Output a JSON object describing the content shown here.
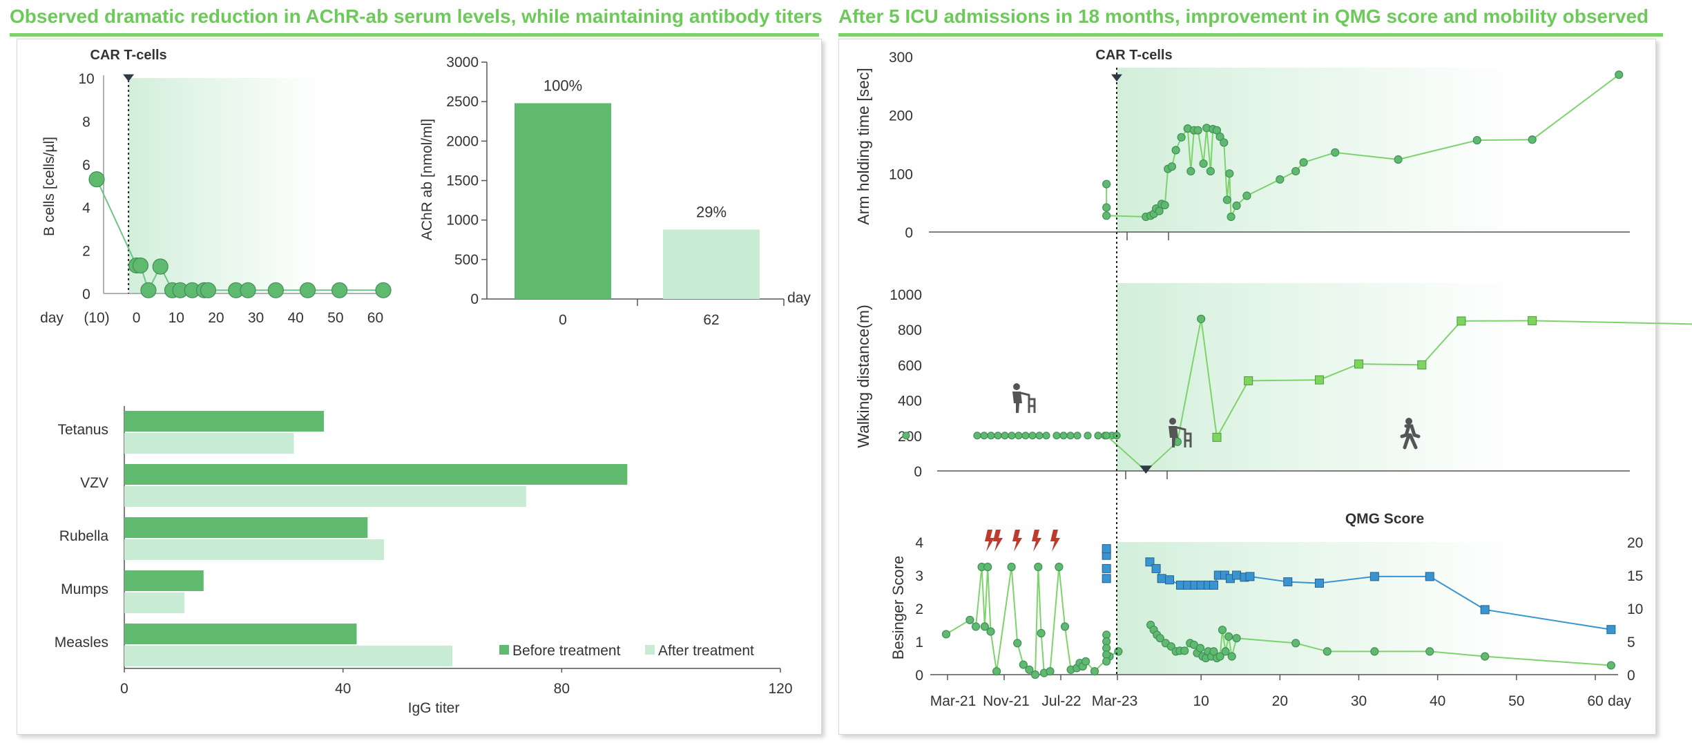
{
  "left_title": "Observed dramatic reduction in AChR-ab serum levels, while maintaining antibody titers",
  "right_title": "After 5 ICU admissions in 18 months, improvement in QMG score and mobility observed",
  "colors": {
    "dark_green": "#5fba70",
    "light_green": "#c8ebd4",
    "line_green": "#7dd36b",
    "blue": "#3a94d0",
    "red": "#c0392b",
    "title_green": "#6cc95a"
  },
  "chart_data": [
    {
      "id": "bcells",
      "type": "line",
      "annotation": "CAR T-cells",
      "ylabel": "B cells [cells/µl]",
      "xlabel": "day",
      "ylim": [
        0,
        10
      ],
      "yticks": [
        "0",
        "2",
        "4",
        "6",
        "8",
        "10"
      ],
      "xtick_labels": [
        "(10)",
        "0",
        "10",
        "20",
        "30",
        "40",
        "50",
        "60"
      ],
      "xtick_values": [
        -10,
        0,
        10,
        20,
        30,
        40,
        50,
        60
      ],
      "xlim": [
        -10,
        62
      ],
      "car_t_day": -2,
      "points": [
        [
          -10,
          5.3
        ],
        [
          0,
          1.3
        ],
        [
          1,
          1.3
        ],
        [
          3,
          0.15
        ],
        [
          6,
          1.25
        ],
        [
          9,
          0.15
        ],
        [
          11,
          0.15
        ],
        [
          14,
          0.15
        ],
        [
          17,
          0.15
        ],
        [
          18,
          0.15
        ],
        [
          25,
          0.15
        ],
        [
          28,
          0.15
        ],
        [
          35,
          0.15
        ],
        [
          43,
          0.15
        ],
        [
          51,
          0.15
        ],
        [
          62,
          0.15
        ]
      ]
    },
    {
      "id": "achr",
      "type": "bar",
      "ylabel": "AChR ab [nmol/ml]",
      "xlabel": "day",
      "ylim": [
        0,
        3000
      ],
      "yticks": [
        "0",
        "500",
        "1000",
        "1500",
        "2000",
        "2500",
        "3000"
      ],
      "categories": [
        "0",
        "62"
      ],
      "values": [
        2480,
        880
      ],
      "labels": [
        "100%",
        "29%"
      ]
    },
    {
      "id": "igg",
      "type": "bar",
      "orientation": "horizontal",
      "xlabel": "IgG titer",
      "xlim": [
        0,
        120
      ],
      "xticks": [
        "0",
        "40",
        "80",
        "120"
      ],
      "categories": [
        "Tetanus",
        "VZV",
        "Rubella",
        "Mumps",
        "Measles"
      ],
      "series": [
        {
          "name": "Before treatment",
          "values": [
            36.5,
            92,
            44.5,
            14.5,
            42.5
          ]
        },
        {
          "name": "After treatment",
          "values": [
            31,
            73.5,
            47.5,
            11,
            60
          ]
        }
      ]
    },
    {
      "id": "arm",
      "type": "line",
      "annotation": "CAR T-cells",
      "ylabel": "Arm holding time [sec]",
      "ylim": [
        0,
        300
      ],
      "yticks": [
        "0",
        "100",
        "200",
        "300"
      ],
      "points": [
        [
          -2,
          82
        ],
        [
          -2,
          42
        ],
        [
          -2,
          28
        ],
        [
          3,
          26
        ],
        [
          3.6,
          28
        ],
        [
          4,
          31
        ],
        [
          4.3,
          40
        ],
        [
          4.7,
          36
        ],
        [
          5,
          48
        ],
        [
          5.4,
          46
        ],
        [
          5.8,
          108
        ],
        [
          6.3,
          112
        ],
        [
          6.8,
          140
        ],
        [
          7.5,
          162
        ],
        [
          8.3,
          177
        ],
        [
          8.7,
          104
        ],
        [
          9.1,
          174
        ],
        [
          9.6,
          174
        ],
        [
          10.3,
          117
        ],
        [
          10.7,
          178
        ],
        [
          11.2,
          104
        ],
        [
          11.5,
          176
        ],
        [
          12,
          174
        ],
        [
          12.4,
          163
        ],
        [
          12.9,
          153
        ],
        [
          13.3,
          55
        ],
        [
          13.6,
          100
        ],
        [
          13.8,
          26
        ],
        [
          14.5,
          45
        ],
        [
          15.8,
          62
        ],
        [
          20,
          90
        ],
        [
          22,
          104
        ],
        [
          23,
          119
        ],
        [
          27,
          136
        ],
        [
          35,
          124
        ],
        [
          45,
          157
        ],
        [
          52,
          158
        ],
        [
          63,
          269
        ]
      ]
    },
    {
      "id": "walk",
      "type": "line",
      "ylabel": "Walking distance(m)",
      "ylim": [
        0,
        1000
      ],
      "yticks": [
        "0",
        "200",
        "400",
        "600",
        "800",
        "1000"
      ],
      "pre_points": [
        200,
        200,
        200,
        200,
        200,
        200,
        200,
        200,
        200,
        200,
        200,
        200,
        200,
        200,
        200,
        200,
        200,
        200,
        200,
        200,
        200
      ],
      "points": [
        [
          -2,
          200
        ],
        [
          3,
          0
        ],
        [
          7,
          165
        ],
        [
          10,
          860
        ],
        [
          12,
          190
        ],
        [
          16,
          510
        ],
        [
          25,
          515
        ],
        [
          30,
          605
        ],
        [
          38,
          600
        ],
        [
          43,
          848
        ],
        [
          52,
          850
        ],
        [
          73,
          830
        ]
      ]
    },
    {
      "id": "qmg",
      "type": "line",
      "title": "QMG Score",
      "ylabel": "Besinger Score",
      "ylim_left": [
        0,
        4
      ],
      "ylim_right": [
        0,
        20
      ],
      "yticks_left": [
        "0",
        "1",
        "2",
        "3",
        "4"
      ],
      "yticks_right": [
        "0",
        "5",
        "10",
        "15",
        "20"
      ],
      "xtick_labels_pre": [
        "Mar-21",
        "Nov-21",
        "Jul-22",
        "Mar-23"
      ],
      "xtick_labels_post": [
        "10",
        "20",
        "30",
        "40",
        "50",
        "60",
        "day"
      ],
      "besinger_pre": [
        [
          0,
          1.22
        ],
        [
          8,
          1.65
        ],
        [
          10,
          1.45
        ],
        [
          12,
          3.25
        ],
        [
          13,
          1.45
        ],
        [
          14,
          3.25
        ],
        [
          15,
          1.3
        ],
        [
          17,
          0.1
        ],
        [
          22,
          3.25
        ],
        [
          24,
          0.95
        ],
        [
          26,
          0.3
        ],
        [
          28,
          0.15
        ],
        [
          30,
          0.0
        ],
        [
          31,
          3.25
        ],
        [
          32,
          1.25
        ],
        [
          33,
          0.05
        ],
        [
          35,
          0.1
        ],
        [
          38,
          3.25
        ],
        [
          40,
          1.45
        ],
        [
          42,
          0.15
        ],
        [
          44,
          0.2
        ],
        [
          45,
          0.35
        ],
        [
          46,
          0.25
        ],
        [
          47,
          0.4
        ],
        [
          50,
          0.1
        ],
        [
          55,
          0.55
        ],
        [
          58,
          0.7
        ]
      ],
      "besinger_post": [
        [
          -2,
          1.2
        ],
        [
          -2,
          1.0
        ],
        [
          -2,
          0.8
        ],
        [
          -2,
          0.6
        ],
        [
          -2,
          0.4
        ],
        [
          3.6,
          1.5
        ],
        [
          4,
          1.35
        ],
        [
          4.4,
          1.2
        ],
        [
          4.8,
          1.1
        ],
        [
          5.5,
          0.95
        ],
        [
          6.2,
          0.85
        ],
        [
          6.8,
          0.7
        ],
        [
          7.3,
          0.72
        ],
        [
          7.9,
          0.72
        ],
        [
          8.6,
          0.95
        ],
        [
          9.1,
          0.9
        ],
        [
          9.5,
          0.65
        ],
        [
          9.9,
          0.8
        ],
        [
          10.2,
          0.55
        ],
        [
          10.6,
          0.5
        ],
        [
          10.9,
          0.7
        ],
        [
          11.3,
          0.55
        ],
        [
          11.6,
          0.7
        ],
        [
          12,
          0.5
        ],
        [
          12.4,
          0.55
        ],
        [
          12.7,
          1.35
        ],
        [
          13.1,
          0.7
        ],
        [
          13.5,
          1.15
        ],
        [
          13.9,
          0.55
        ],
        [
          14.5,
          1.1
        ],
        [
          22,
          0.95
        ],
        [
          26,
          0.7
        ],
        [
          32,
          0.7
        ],
        [
          39,
          0.7
        ],
        [
          46,
          0.55
        ],
        [
          62,
          0.28
        ]
      ],
      "qmg_pre": [
        [
          -2,
          14.5
        ],
        [
          -2,
          16
        ],
        [
          -2,
          18
        ],
        [
          -2,
          19
        ]
      ],
      "qmg_post": [
        [
          3.5,
          17
        ],
        [
          4.3,
          16
        ],
        [
          5,
          14.5
        ],
        [
          6,
          14.3
        ],
        [
          7.4,
          13.5
        ],
        [
          8.3,
          13.5
        ],
        [
          9.2,
          13.5
        ],
        [
          10,
          13.5
        ],
        [
          10.9,
          13.5
        ],
        [
          11.6,
          13.5
        ],
        [
          12.2,
          15
        ],
        [
          13,
          15
        ],
        [
          13.7,
          14.5
        ],
        [
          14.5,
          15
        ],
        [
          15.5,
          14.7
        ],
        [
          16.2,
          14.8
        ],
        [
          21,
          14
        ],
        [
          25,
          13.8
        ],
        [
          32,
          14.8
        ],
        [
          39,
          14.8
        ],
        [
          46,
          9.8
        ],
        [
          62,
          6.8
        ]
      ],
      "lightning_count": 5
    }
  ],
  "arm_ann": "CAR T-cells"
}
